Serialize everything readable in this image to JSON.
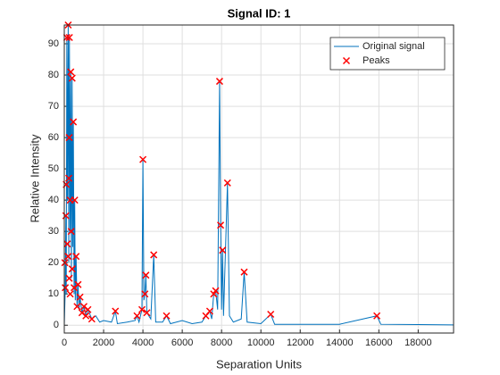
{
  "chart_data": {
    "type": "line",
    "title": "Signal ID: 1",
    "xlabel": "Separation Units",
    "ylabel": "Relative Intensity",
    "xlim": [
      0,
      19800
    ],
    "ylim": [
      -2.5,
      96
    ],
    "xticks": [
      0,
      2000,
      4000,
      6000,
      8000,
      10000,
      12000,
      14000,
      16000,
      18000
    ],
    "yticks": [
      0,
      10,
      20,
      30,
      40,
      50,
      60,
      70,
      80,
      90
    ],
    "grid": true,
    "legend": "upper right",
    "series": [
      {
        "name": "Original signal",
        "color": "#0072bd",
        "x": [
          0,
          50,
          80,
          100,
          130,
          160,
          200,
          230,
          260,
          300,
          330,
          360,
          400,
          430,
          460,
          500,
          530,
          560,
          600,
          650,
          700,
          750,
          800,
          900,
          1000,
          1100,
          1200,
          1400,
          1600,
          1800,
          2000,
          2400,
          2600,
          2700,
          3200,
          3600,
          3700,
          3800,
          3950,
          4000,
          4050,
          4100,
          4150,
          4200,
          4400,
          4550,
          4650,
          5000,
          5200,
          5400,
          6000,
          6500,
          7000,
          7200,
          7400,
          7500,
          7600,
          7700,
          7800,
          7900,
          7950,
          8000,
          8050,
          8100,
          8300,
          8400,
          8600,
          9000,
          9150,
          9300,
          10000,
          10500,
          10700,
          12000,
          14000,
          15900,
          16100,
          18000,
          19800
        ],
        "values": [
          0,
          12,
          35,
          10,
          92,
          40,
          96,
          20,
          92,
          30,
          81,
          15,
          79,
          25,
          65,
          10,
          40,
          8,
          22,
          6,
          13,
          5,
          9,
          4,
          6,
          3,
          5,
          2,
          3,
          1,
          1.5,
          1,
          4.5,
          0.5,
          1,
          1.5,
          3,
          1,
          5,
          53,
          8,
          10,
          16,
          4,
          2,
          22.5,
          1,
          1,
          3,
          0.5,
          1.5,
          0.5,
          1,
          3,
          4.5,
          2,
          10,
          11,
          5,
          78,
          32,
          5,
          24,
          3,
          45.5,
          3,
          1,
          2,
          17,
          1,
          0.5,
          3.5,
          0.3,
          0.3,
          0.3,
          3,
          0.3,
          0.2,
          0.1
        ]
      },
      {
        "name": "Peaks",
        "color": "#ff0000",
        "marker": "x",
        "x": [
          30,
          50,
          80,
          100,
          130,
          150,
          200,
          200,
          230,
          250,
          250,
          260,
          300,
          300,
          330,
          350,
          400,
          400,
          460,
          500,
          530,
          600,
          650,
          700,
          800,
          900,
          1000,
          1100,
          1200,
          1400,
          2600,
          3700,
          3950,
          4000,
          4100,
          4150,
          4200,
          4550,
          5200,
          7200,
          7400,
          7600,
          7700,
          7900,
          7950,
          8050,
          8300,
          9150,
          10500,
          15900
        ],
        "values": [
          20,
          12,
          35,
          45,
          92,
          26,
          96,
          22,
          47,
          60,
          15,
          92,
          40,
          10,
          81,
          30,
          79,
          18,
          65,
          12,
          40,
          22,
          6,
          13,
          9,
          4,
          6,
          3,
          5,
          2,
          4.5,
          3,
          5,
          53,
          10,
          16,
          4,
          22.5,
          3,
          3,
          4.5,
          10,
          11,
          78,
          32,
          24,
          45.5,
          17,
          3.5,
          3
        ]
      }
    ]
  }
}
